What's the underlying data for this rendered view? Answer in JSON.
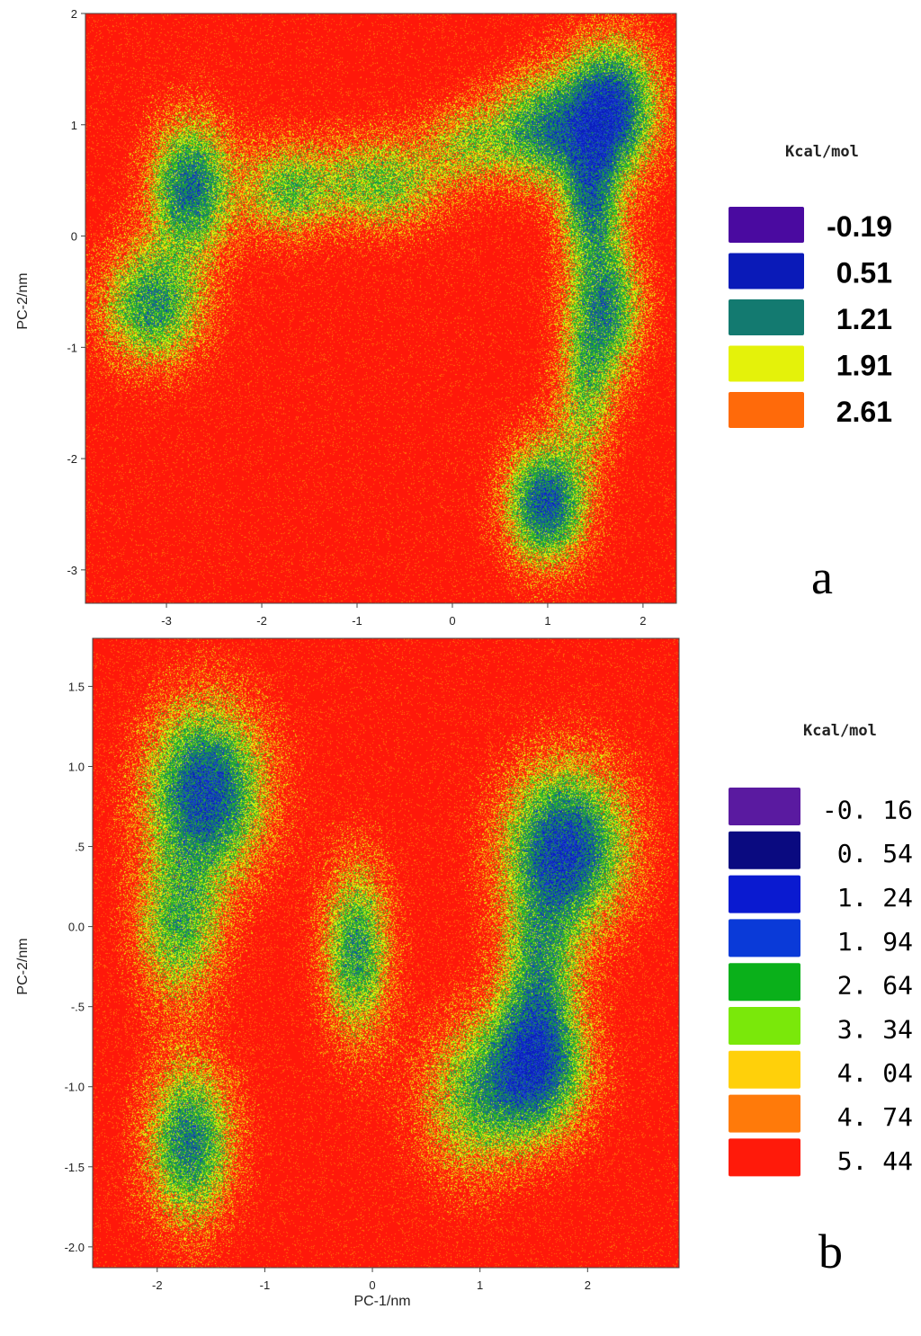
{
  "chart_data": [
    {
      "type": "heatmap",
      "panel_label": "a",
      "title": "",
      "xlabel": "",
      "ylabel": "PC-2/nm",
      "xlim": [
        -3.85,
        2.35
      ],
      "ylim": [
        -3.3,
        2.0
      ],
      "xticks": [
        {
          "v": -3,
          "label": "-3"
        },
        {
          "v": -2,
          "label": "-2"
        },
        {
          "v": -1,
          "label": "-1"
        },
        {
          "v": 0,
          "label": "0"
        },
        {
          "v": 1,
          "label": "1"
        },
        {
          "v": 2,
          "label": "2"
        }
      ],
      "yticks": [
        {
          "v": 2,
          "label": "2"
        },
        {
          "v": 1,
          "label": "1"
        },
        {
          "v": 0,
          "label": "0"
        },
        {
          "v": -1,
          "label": "-1"
        },
        {
          "v": -2,
          "label": "-2"
        },
        {
          "v": -3,
          "label": "-3"
        }
      ],
      "background_color": "#ff1a0a",
      "legend": {
        "unit": "Kcal/mol",
        "placement": "right",
        "entries": [
          {
            "label": "-0.19",
            "color": "#4a0aa0"
          },
          {
            "label": "0.51",
            "color": "#0a1ab8"
          },
          {
            "label": "1.21",
            "color": "#137a70"
          },
          {
            "label": "1.91",
            "color": "#e4f20a"
          },
          {
            "label": "2.61",
            "color": "#ff6a0a"
          }
        ]
      },
      "basins": [
        {
          "x": -2.75,
          "y": 0.45,
          "sx": 0.3,
          "sy": 0.42,
          "depth": 1.0
        },
        {
          "x": -3.15,
          "y": -0.62,
          "sx": 0.38,
          "sy": 0.38,
          "depth": 0.85
        },
        {
          "x": -1.75,
          "y": 0.42,
          "sx": 0.32,
          "sy": 0.3,
          "depth": 0.62
        },
        {
          "x": -0.75,
          "y": 0.48,
          "sx": 0.48,
          "sy": 0.3,
          "depth": 0.65
        },
        {
          "x": 0.15,
          "y": 0.85,
          "sx": 0.3,
          "sy": 0.25,
          "depth": 0.45
        },
        {
          "x": 0.9,
          "y": 0.95,
          "sx": 0.35,
          "sy": 0.35,
          "depth": 0.8
        },
        {
          "x": 1.65,
          "y": 1.15,
          "sx": 0.35,
          "sy": 0.42,
          "depth": 1.2
        },
        {
          "x": 1.45,
          "y": 0.3,
          "sx": 0.22,
          "sy": 0.38,
          "depth": 0.8
        },
        {
          "x": 1.6,
          "y": -0.62,
          "sx": 0.28,
          "sy": 0.42,
          "depth": 0.85
        },
        {
          "x": 1.4,
          "y": -1.4,
          "sx": 0.22,
          "sy": 0.42,
          "depth": 0.55
        },
        {
          "x": 0.98,
          "y": -2.4,
          "sx": 0.3,
          "sy": 0.38,
          "depth": 1.1
        }
      ]
    },
    {
      "type": "heatmap",
      "panel_label": "b",
      "title": "",
      "xlabel": "PC-1/nm",
      "ylabel": "PC-2/nm",
      "xlim": [
        -2.6,
        2.85
      ],
      "ylim": [
        -2.13,
        1.8
      ],
      "xticks": [
        {
          "v": -2,
          "label": "-2"
        },
        {
          "v": -1,
          "label": "-1"
        },
        {
          "v": 0,
          "label": "0"
        },
        {
          "v": 1,
          "label": "1"
        },
        {
          "v": 2,
          "label": "2"
        }
      ],
      "yticks": [
        {
          "v": 1.5,
          "label": "1.5"
        },
        {
          "v": 1.0,
          "label": "1.0"
        },
        {
          "v": 0.5,
          "label": ".5"
        },
        {
          "v": 0.0,
          "label": "0.0"
        },
        {
          "v": -0.5,
          "label": "-.5"
        },
        {
          "v": -1.0,
          "label": "-1.0"
        },
        {
          "v": -1.5,
          "label": "-1.5"
        },
        {
          "v": -2.0,
          "label": "-2.0"
        }
      ],
      "background_color": "#ff1a0a",
      "legend": {
        "unit": "Kcal/mol",
        "placement": "right",
        "entries": [
          {
            "label": "-0. 16",
            "color": "#5a1aa0"
          },
          {
            "label": "0. 54",
            "color": "#0a0a80"
          },
          {
            "label": "1. 24",
            "color": "#0a1ad0"
          },
          {
            "label": "1. 94",
            "color": "#0a3ad8"
          },
          {
            "label": "2. 64",
            "color": "#0ab01a"
          },
          {
            "label": "3. 34",
            "color": "#7ae80a"
          },
          {
            "label": "4. 04",
            "color": "#ffd00a"
          },
          {
            "label": "4. 74",
            "color": "#ff7a0a"
          },
          {
            "label": "5. 44",
            "color": "#ff1a0a"
          }
        ]
      },
      "basins": [
        {
          "x": -1.55,
          "y": 0.85,
          "sx": 0.38,
          "sy": 0.38,
          "depth": 1.15
        },
        {
          "x": -1.8,
          "y": -0.02,
          "sx": 0.28,
          "sy": 0.32,
          "depth": 0.7
        },
        {
          "x": -1.7,
          "y": -1.35,
          "sx": 0.28,
          "sy": 0.35,
          "depth": 0.95
        },
        {
          "x": -0.15,
          "y": -0.15,
          "sx": 0.22,
          "sy": 0.38,
          "depth": 0.85
        },
        {
          "x": 1.8,
          "y": 0.5,
          "sx": 0.4,
          "sy": 0.36,
          "depth": 1.15
        },
        {
          "x": 1.55,
          "y": -0.3,
          "sx": 0.25,
          "sy": 0.38,
          "depth": 0.7
        },
        {
          "x": 1.5,
          "y": -0.9,
          "sx": 0.35,
          "sy": 0.3,
          "depth": 1.0
        },
        {
          "x": 0.9,
          "y": -1.1,
          "sx": 0.35,
          "sy": 0.35,
          "depth": 0.55
        }
      ]
    }
  ]
}
